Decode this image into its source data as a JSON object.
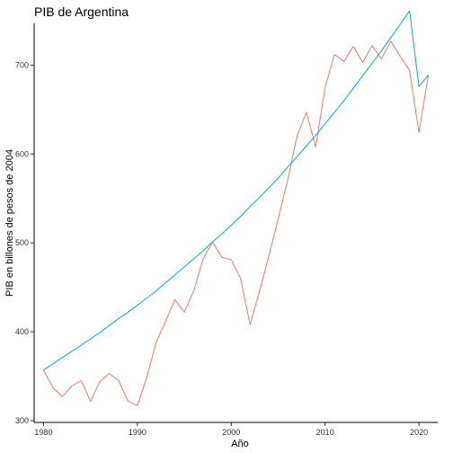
{
  "chart_data": {
    "type": "line",
    "title": "PIB de Argentina",
    "xlabel": "Año",
    "ylabel": "PIB en billones de pesos de 2004",
    "xlim": [
      1979,
      2022
    ],
    "ylim": [
      298,
      747
    ],
    "x_ticks": [
      1980,
      1990,
      2000,
      2010,
      2020
    ],
    "y_ticks": [
      300,
      400,
      500,
      600,
      700
    ],
    "grid": false,
    "legend": "none",
    "series": [
      {
        "color": "#F8766D",
        "x": [
          1980,
          1981,
          1982,
          1983,
          1984,
          1985,
          1986,
          1987,
          1988,
          1989,
          1990,
          1991,
          1992,
          1993,
          1994,
          1995,
          1996,
          1997,
          1998,
          1999,
          2000,
          2001,
          2002,
          2003,
          2004,
          2005,
          2006,
          2007,
          2008,
          2009,
          2010,
          2011,
          2012,
          2013,
          2014,
          2015,
          2016,
          2017,
          2018,
          2019,
          2020,
          2021
        ],
        "y": [
          357,
          337,
          327,
          339,
          345,
          322,
          344,
          353,
          345,
          322,
          317,
          349,
          388,
          412,
          436,
          422,
          446,
          482,
          501,
          484,
          481,
          460,
          408,
          445,
          485,
          527,
          570,
          620,
          647,
          608,
          675,
          712,
          704,
          721,
          703,
          722,
          707,
          727,
          710,
          694,
          624,
          689
        ]
      },
      {
        "color": "#00A9E0",
        "x": [
          1980,
          1981,
          1982,
          1983,
          1984,
          1985,
          1986,
          1987,
          1988,
          1989,
          1990,
          1991,
          1992,
          1993,
          1994,
          1995,
          1996,
          1997,
          1998,
          1999,
          2000,
          2001,
          2002,
          2003,
          2004,
          2005,
          2006,
          2007,
          2008,
          2009,
          2010,
          2011,
          2012,
          2013,
          2014,
          2015,
          2016,
          2017,
          2018,
          2019,
          2020,
          2021
        ],
        "y": [
          357,
          364,
          371,
          378,
          385,
          392,
          399,
          407,
          415,
          422,
          430,
          438,
          446,
          455,
          464,
          473,
          482,
          491,
          501,
          510,
          520,
          530,
          541,
          551,
          562,
          573,
          585,
          597,
          609,
          621,
          634,
          647,
          660,
          674,
          688,
          702,
          716,
          731,
          746,
          761,
          676,
          689
        ]
      }
    ]
  }
}
